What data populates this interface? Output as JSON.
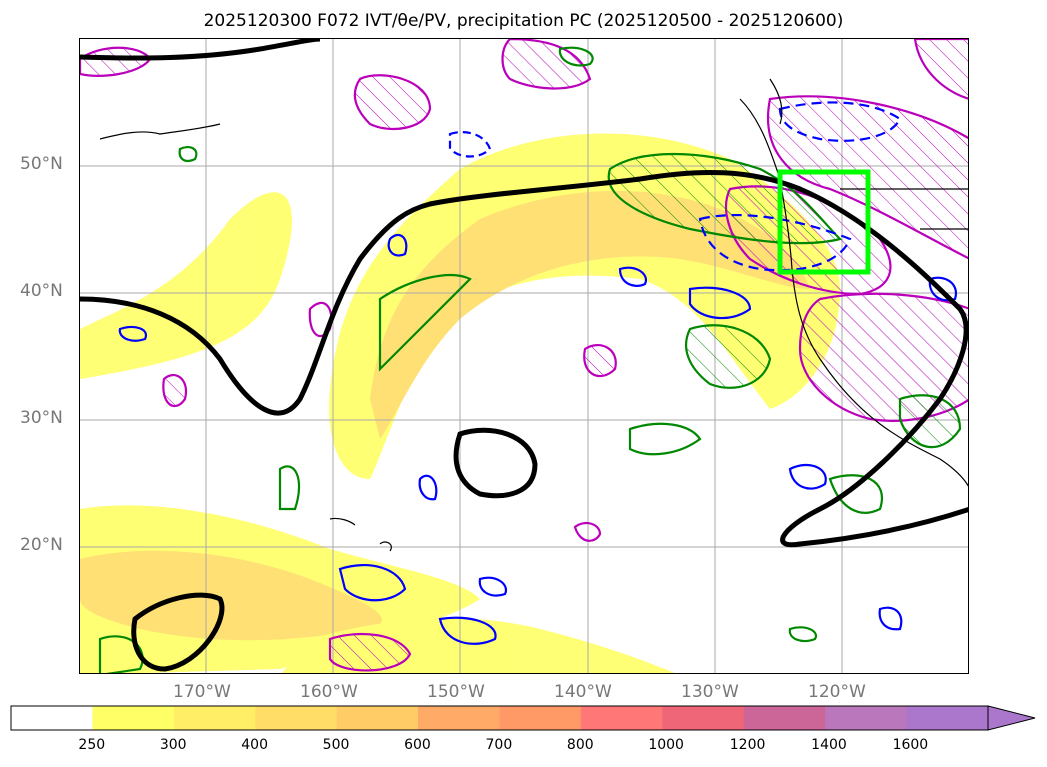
{
  "title": "2025120300 F072 IVT/θe/PV, precipitation PC (2025120500 - 2025120600)",
  "latitude_labels": [
    "50°N",
    "40°N",
    "30°N",
    "20°N"
  ],
  "longitude_labels": [
    "170°W",
    "160°W",
    "150°W",
    "140°W",
    "130°W",
    "120°W"
  ],
  "colorbar": {
    "ticks": [
      "250",
      "300",
      "400",
      "500",
      "600",
      "700",
      "800",
      "1000",
      "1200",
      "1400",
      "1600"
    ],
    "colors": [
      "#ffffff",
      "#ffff66",
      "#ffee66",
      "#ffdd66",
      "#ffcc66",
      "#ffaa66",
      "#ff9966",
      "#ff7777",
      "#ee6677",
      "#cc6699",
      "#bb77bb",
      "#aa77cc"
    ]
  },
  "legend_colors": {
    "ivt_fill": "#ffdd55",
    "pv_contour": "#000000",
    "theta_e_positive": "#0000ff",
    "precip_pc": "#008800",
    "pv_hatched": "#bb00bb",
    "highlight_box": "#00ff00"
  }
}
